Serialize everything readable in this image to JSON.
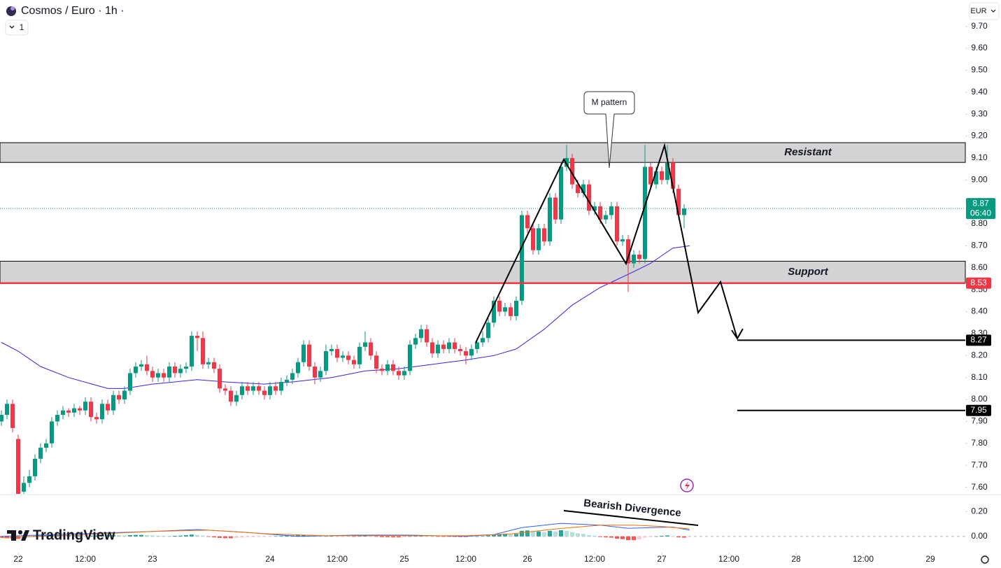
{
  "ui": {
    "interval": "1",
    "currency": "EUR",
    "brand": "TradingView"
  },
  "chart_data": [
    {
      "type": "candlestick",
      "title": "Cosmos / Euro · 1h ·",
      "up_color": "#089981",
      "down_color": "#f23645",
      "xlim": [
        -3.25,
        169.25
      ],
      "ylim": [
        7.57,
        9.82
      ],
      "xticks": [
        {
          "value": 0,
          "label": "22"
        },
        {
          "value": 12,
          "label": "12:00"
        },
        {
          "value": 24,
          "label": "23"
        },
        {
          "value": 45,
          "label": "24"
        },
        {
          "value": 57,
          "label": "12:00"
        },
        {
          "value": 69,
          "label": "25"
        },
        {
          "value": 80,
          "label": "12:00"
        },
        {
          "value": 91,
          "label": "26"
        },
        {
          "value": 103,
          "label": "12:00"
        },
        {
          "value": 115,
          "label": "27"
        },
        {
          "value": 127,
          "label": "12:00"
        },
        {
          "value": 139,
          "label": "28"
        },
        {
          "value": 151,
          "label": "12:00"
        },
        {
          "value": 163,
          "label": "29"
        }
      ],
      "yticks": [
        {
          "value": 9.7,
          "label": "9.70"
        },
        {
          "value": 9.6,
          "label": "9.60"
        },
        {
          "value": 9.5,
          "label": "9.50"
        },
        {
          "value": 9.4,
          "label": "9.40"
        },
        {
          "value": 9.3,
          "label": "9.30"
        },
        {
          "value": 9.2,
          "label": "9.20"
        },
        {
          "value": 9.1,
          "label": "9.10"
        },
        {
          "value": 9.0,
          "label": "9.00"
        },
        {
          "value": 8.9,
          "label": "8.90"
        },
        {
          "value": 8.8,
          "label": "8.80"
        },
        {
          "value": 8.7,
          "label": "8.70"
        },
        {
          "value": 8.6,
          "label": "8.60"
        },
        {
          "value": 8.5,
          "label": "8.50"
        },
        {
          "value": 8.4,
          "label": "8.40"
        },
        {
          "value": 8.3,
          "label": "8.30"
        },
        {
          "value": 8.2,
          "label": "8.20"
        },
        {
          "value": 8.1,
          "label": "8.10"
        },
        {
          "value": 8.0,
          "label": "8.00"
        },
        {
          "value": 7.9,
          "label": "7.90"
        },
        {
          "value": 7.8,
          "label": "7.80"
        },
        {
          "value": 7.7,
          "label": "7.70"
        },
        {
          "value": 7.6,
          "label": "7.60"
        }
      ],
      "x": [
        -3,
        -2,
        -1,
        0,
        1,
        2,
        3,
        4,
        5,
        6,
        7,
        8,
        9,
        10,
        11,
        12,
        13,
        14,
        15,
        16,
        17,
        18,
        19,
        20,
        21,
        22,
        23,
        24,
        25,
        26,
        27,
        28,
        29,
        30,
        31,
        32,
        33,
        34,
        35,
        36,
        37,
        38,
        39,
        40,
        41,
        42,
        43,
        44,
        45,
        46,
        47,
        48,
        49,
        50,
        51,
        52,
        53,
        54,
        55,
        56,
        57,
        58,
        59,
        60,
        61,
        62,
        63,
        64,
        65,
        66,
        67,
        68,
        69,
        70,
        71,
        72,
        73,
        74,
        75,
        76,
        77,
        78,
        79,
        80,
        81,
        82,
        83,
        84,
        85,
        86,
        87,
        88,
        89,
        90,
        91,
        92,
        93,
        94,
        95,
        96,
        97,
        98,
        99,
        100,
        101,
        102,
        103,
        104,
        105,
        106,
        107,
        108,
        109,
        110,
        111,
        112,
        113,
        114,
        115,
        116,
        117,
        118,
        119
      ],
      "open": [
        7.9,
        7.93,
        7.98,
        7.82,
        7.58,
        7.62,
        7.65,
        7.73,
        7.78,
        7.8,
        7.9,
        7.93,
        7.95,
        7.94,
        7.96,
        7.95,
        7.99,
        7.92,
        7.91,
        7.98,
        7.95,
        8.02,
        8.0,
        8.04,
        8.12,
        8.15,
        8.16,
        8.13,
        8.1,
        8.12,
        8.1,
        8.15,
        8.12,
        8.14,
        8.15,
        8.29,
        8.28,
        8.16,
        8.17,
        8.14,
        8.05,
        8.04,
        7.99,
        8.02,
        8.06,
        8.04,
        8.06,
        8.04,
        8.02,
        8.06,
        8.04,
        8.08,
        8.09,
        8.12,
        8.17,
        8.25,
        8.15,
        8.1,
        8.13,
        8.22,
        8.23,
        8.19,
        8.2,
        8.18,
        8.16,
        8.24,
        8.26,
        8.2,
        8.14,
        8.13,
        8.16,
        8.13,
        8.11,
        8.13,
        8.25,
        8.28,
        8.32,
        8.26,
        8.21,
        8.25,
        8.23,
        8.26,
        8.23,
        8.22,
        8.2,
        8.23,
        8.26,
        8.28,
        8.35,
        8.45,
        8.4,
        8.42,
        8.38,
        8.45,
        8.84,
        8.78,
        8.68,
        8.78,
        8.72,
        8.92,
        8.82,
        9.06,
        9.1,
        8.98,
        8.94,
        8.98,
        8.86,
        8.88,
        8.82,
        8.84,
        8.88,
        8.72,
        8.73,
        8.62,
        8.66,
        8.64,
        9.06,
        8.98,
        9.04,
        9.0,
        9.08,
        8.96,
        8.84
      ],
      "high": [
        7.95,
        8.0,
        8.0,
        7.84,
        7.65,
        7.68,
        7.75,
        7.8,
        7.82,
        7.92,
        7.95,
        7.97,
        7.96,
        7.98,
        7.97,
        8.01,
        8.01,
        7.94,
        8.0,
        8.0,
        8.04,
        8.04,
        8.06,
        8.14,
        8.17,
        8.18,
        8.2,
        8.15,
        8.14,
        8.14,
        8.17,
        8.17,
        8.16,
        8.17,
        8.31,
        8.31,
        8.31,
        8.19,
        8.19,
        8.16,
        8.07,
        8.06,
        8.04,
        8.08,
        8.08,
        8.08,
        8.08,
        8.06,
        8.08,
        8.08,
        8.1,
        8.11,
        8.14,
        8.19,
        8.27,
        8.27,
        8.17,
        8.15,
        8.25,
        8.25,
        8.25,
        8.22,
        8.22,
        8.2,
        8.26,
        8.31,
        8.28,
        8.22,
        8.16,
        8.18,
        8.18,
        8.15,
        8.15,
        8.27,
        8.3,
        8.34,
        8.34,
        8.28,
        8.27,
        8.27,
        8.28,
        8.28,
        8.25,
        8.24,
        8.25,
        8.28,
        8.31,
        8.37,
        8.47,
        8.47,
        8.44,
        8.44,
        8.47,
        8.86,
        8.86,
        8.8,
        8.8,
        8.8,
        8.94,
        8.94,
        9.08,
        9.16,
        9.12,
        9.0,
        9.0,
        9.0,
        8.9,
        8.9,
        8.86,
        8.9,
        8.9,
        8.75,
        8.75,
        8.68,
        8.68,
        9.16,
        9.08,
        9.06,
        9.06,
        9.16,
        9.1,
        8.98,
        8.89
      ],
      "low": [
        7.88,
        7.91,
        7.85,
        7.55,
        7.56,
        7.6,
        7.63,
        7.71,
        7.76,
        7.78,
        7.88,
        7.91,
        7.92,
        7.92,
        7.93,
        7.93,
        7.9,
        7.89,
        7.89,
        7.93,
        7.93,
        7.98,
        7.98,
        8.02,
        8.1,
        8.13,
        8.11,
        8.08,
        8.08,
        8.08,
        8.08,
        8.1,
        8.1,
        8.12,
        8.13,
        8.22,
        8.14,
        8.14,
        8.12,
        8.03,
        8.02,
        7.97,
        7.97,
        8.0,
        8.02,
        8.02,
        8.02,
        8.0,
        8.0,
        8.02,
        8.02,
        8.06,
        8.07,
        8.1,
        8.15,
        8.13,
        8.07,
        8.08,
        8.11,
        8.2,
        8.17,
        8.17,
        8.16,
        8.14,
        8.14,
        8.22,
        8.18,
        8.12,
        8.11,
        8.11,
        8.11,
        8.09,
        8.09,
        8.11,
        8.23,
        8.26,
        8.24,
        8.19,
        8.19,
        8.21,
        8.21,
        8.21,
        8.2,
        8.16,
        8.18,
        8.21,
        8.24,
        8.26,
        8.33,
        8.38,
        8.38,
        8.36,
        8.36,
        8.43,
        8.76,
        8.66,
        8.66,
        8.7,
        8.7,
        8.8,
        8.8,
        9.04,
        8.96,
        8.92,
        8.92,
        8.84,
        8.84,
        8.8,
        8.8,
        8.82,
        8.7,
        8.7,
        8.49,
        8.6,
        8.62,
        8.62,
        8.96,
        8.96,
        8.98,
        8.98,
        8.94,
        8.82,
        8.78
      ],
      "close": [
        7.93,
        7.98,
        7.87,
        7.57,
        7.62,
        7.65,
        7.73,
        7.78,
        7.8,
        7.9,
        7.93,
        7.95,
        7.94,
        7.96,
        7.95,
        7.99,
        7.92,
        7.91,
        7.98,
        7.95,
        8.02,
        8.0,
        8.04,
        8.12,
        8.15,
        8.16,
        8.13,
        8.1,
        8.12,
        8.1,
        8.15,
        8.12,
        8.14,
        8.15,
        8.29,
        8.28,
        8.16,
        8.17,
        8.14,
        8.05,
        8.04,
        7.99,
        8.02,
        8.06,
        8.04,
        8.06,
        8.04,
        8.02,
        8.06,
        8.04,
        8.08,
        8.09,
        8.12,
        8.17,
        8.25,
        8.15,
        8.1,
        8.13,
        8.22,
        8.23,
        8.19,
        8.2,
        8.18,
        8.16,
        8.24,
        8.26,
        8.2,
        8.14,
        8.13,
        8.16,
        8.13,
        8.11,
        8.13,
        8.25,
        8.28,
        8.32,
        8.26,
        8.21,
        8.25,
        8.23,
        8.26,
        8.23,
        8.22,
        8.2,
        8.23,
        8.26,
        8.28,
        8.35,
        8.45,
        8.4,
        8.42,
        8.38,
        8.45,
        8.84,
        8.78,
        8.68,
        8.78,
        8.72,
        8.92,
        8.82,
        9.06,
        9.1,
        8.98,
        8.94,
        8.98,
        8.86,
        8.88,
        8.82,
        8.84,
        8.88,
        8.72,
        8.73,
        8.62,
        8.66,
        8.64,
        9.06,
        8.98,
        9.04,
        9.0,
        9.08,
        8.96,
        8.84,
        8.87
      ],
      "ma": {
        "color": "#3d1ee6",
        "x": [
          -3,
          0,
          4,
          9,
          16,
          19,
          24,
          32,
          37,
          44,
          49,
          56,
          62,
          68,
          74,
          80,
          85,
          89,
          94,
          99,
          104,
          109,
          113,
          117,
          120
        ],
        "values": [
          8.26,
          8.22,
          8.15,
          8.1,
          8.05,
          8.05,
          8.07,
          8.09,
          8.08,
          8.07,
          8.08,
          8.1,
          8.13,
          8.14,
          8.16,
          8.18,
          8.2,
          8.23,
          8.32,
          8.43,
          8.51,
          8.57,
          8.62,
          8.69,
          8.7
        ]
      },
      "zones": [
        {
          "name": "Resistant",
          "from": 9.08,
          "to": 9.17
        },
        {
          "name": "Support",
          "from": 8.53,
          "to": 8.63
        }
      ],
      "alert_line": {
        "value": 8.53,
        "color": "#f23645"
      },
      "targets": [
        {
          "value": 8.27,
          "color": "#000000"
        },
        {
          "value": 7.95,
          "color": "#000000"
        }
      ],
      "last": {
        "countdown": "06:40",
        "color": "#089981"
      },
      "annotations": [
        "M pattern"
      ]
    },
    {
      "type": "macd",
      "xlim": [
        -3.25,
        169.25
      ],
      "ylim": [
        -0.13,
        0.33
      ],
      "yticks": [
        {
          "value": 0.2,
          "label": "0.20"
        },
        {
          "value": 0,
          "label": "0.00"
        }
      ],
      "histogram_colors": [
        "#26a69a",
        "#b2dfdb",
        "#ff5252",
        "#ffcdd2"
      ],
      "histogram": [
        -0.01,
        -0.015,
        -0.02,
        -0.02,
        -0.01,
        -0.005,
        0.005,
        0.01,
        0.01,
        0.012,
        0.012,
        0.01,
        0.01,
        0.008,
        0.008,
        0.006,
        0.006,
        0.008,
        0.01,
        0.012,
        0.012,
        0.01,
        0.008,
        0.01,
        0.012,
        0.012,
        0.01,
        0.008,
        0.006,
        0.005,
        0.004,
        0.005,
        0.006,
        0.01,
        0.015,
        0.012,
        0.006,
        -0.004,
        -0.008,
        -0.012,
        -0.014,
        -0.015,
        -0.013,
        -0.01,
        -0.008,
        -0.006,
        -0.005,
        -0.004,
        -0.002,
        0.002,
        0.004,
        0.006,
        0.008,
        0.01,
        0.012,
        0.008,
        0.004,
        0.003,
        0.005,
        0.006,
        0.004,
        0.002,
        0.0,
        -0.002,
        0.003,
        0.005,
        0.002,
        -0.003,
        -0.006,
        -0.007,
        -0.008,
        -0.008,
        -0.006,
        0.0,
        0.004,
        0.006,
        0.004,
        0.0,
        -0.002,
        -0.003,
        -0.003,
        -0.004,
        -0.005,
        -0.005,
        -0.003,
        0.0,
        0.003,
        0.008,
        0.015,
        0.016,
        0.018,
        0.016,
        0.02,
        0.045,
        0.048,
        0.04,
        0.04,
        0.035,
        0.045,
        0.04,
        0.05,
        0.045,
        0.035,
        0.025,
        0.02,
        0.01,
        0.005,
        -0.005,
        -0.008,
        -0.01,
        -0.018,
        -0.022,
        -0.03,
        -0.03,
        -0.025,
        -0.01,
        -0.005,
        0.0,
        0.005,
        0.008,
        0.002,
        -0.008,
        -0.01
      ],
      "series": [
        {
          "color": "#2962ff",
          "x": [
            -3,
            10,
            24,
            32,
            40,
            50,
            60,
            70,
            80,
            85,
            90,
            97,
            104,
            109,
            113,
            117,
            120
          ],
          "values": [
            0.0,
            0.02,
            0.04,
            0.055,
            0.035,
            0.0,
            0.01,
            0.01,
            0.0,
            0.015,
            0.07,
            0.105,
            0.09,
            0.065,
            0.07,
            0.075,
            0.05
          ]
        },
        {
          "color": "#ff6d00",
          "x": [
            -3,
            10,
            24,
            34,
            45,
            55,
            70,
            80,
            88,
            96,
            104,
            110,
            115,
            120
          ],
          "values": [
            -0.01,
            0.01,
            0.04,
            0.05,
            0.02,
            0.005,
            0.005,
            0.005,
            0.02,
            0.06,
            0.09,
            0.09,
            0.08,
            0.06
          ]
        }
      ],
      "annotations": [
        "Bearish Divergence"
      ]
    }
  ]
}
